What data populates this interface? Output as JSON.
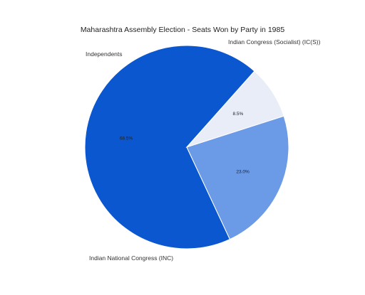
{
  "chart_data": {
    "type": "pie",
    "title": "Maharashtra Assembly Election - Seats Won by Party in 1985",
    "slices": [
      {
        "label": "Indian National Congress (INC)",
        "value": 68.5,
        "pct_text": "68.5%",
        "color": "#0b57d0"
      },
      {
        "label": "Independents",
        "value": 8.5,
        "pct_text": "8.5%",
        "color": "#e8edf8"
      },
      {
        "label": "Indian Congress (Socialist) (IC(S))",
        "value": 23.0,
        "pct_text": "23.0%",
        "color": "#6b9be6"
      }
    ]
  }
}
